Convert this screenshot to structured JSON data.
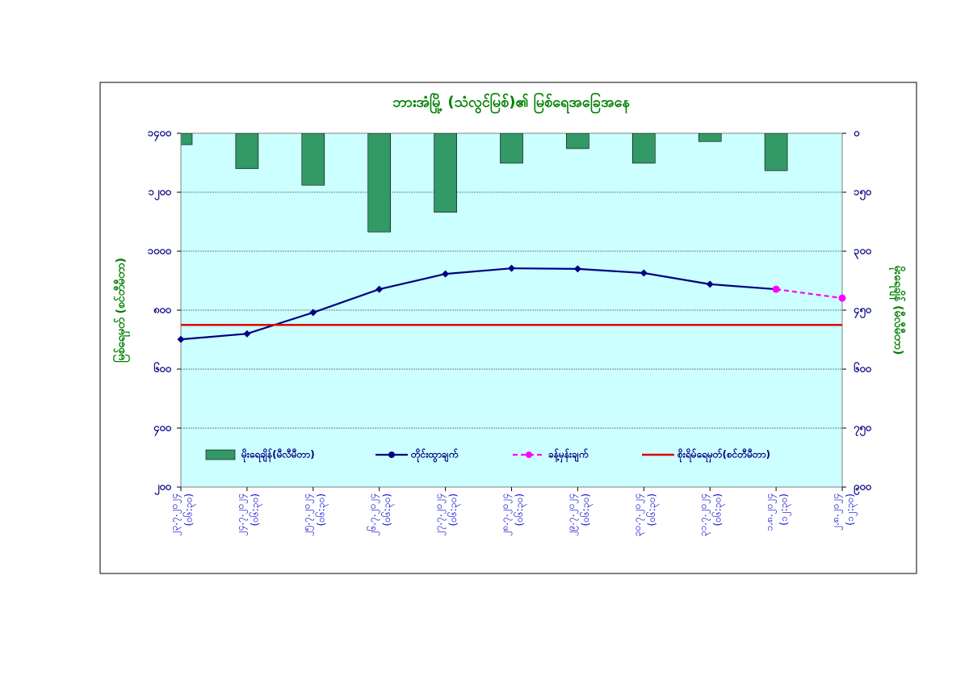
{
  "chart_data": {
    "type": "combo",
    "title": "ဘားအံမြို့ (သံလွင်မြစ်)၏ မြစ်ရေအခြေအနေ",
    "ylabel": "မြစ်ရေမှတ် (စင်တီမီတာ)",
    "y2label": "မိုးရေချိန် (မီလီမီတာ)",
    "categories": [
      "၂၃.၇.၂၀၂၄",
      "၂၄.၇.၂၀၂၄",
      "၂၅.၇.၂၀၂၄",
      "၂၆.၇.၂၀၂၄",
      "၂၇.၇.၂၀၂၄",
      "၂၈.၇.၂၀၂၄",
      "၂၉.၇.၂၀၂၄",
      "၃၀.၇.၂၀၂၄",
      "၃၁.၇.၂၀၂၄",
      "၁.၈.၂၀၂၄",
      "၂.၈.၂၀၂၄"
    ],
    "times": [
      "(၀၆:၃၀)",
      "(၀၆:၃၀)",
      "(၀၆:၃၀)",
      "(၀၆:၃၀)",
      "(၀၆:၃၀)",
      "(၀၆:၃၀)",
      "(၀၆:၃၀)",
      "(၀၆:၃၀)",
      "(၀၆:၃၀)",
      "(၁၂:၃၀)",
      "(၁၂:၃၀)"
    ],
    "ylim": [
      200,
      1400
    ],
    "yticks": [
      {
        "value": 200,
        "label": "၂၀၀"
      },
      {
        "value": 400,
        "label": "၄၀၀"
      },
      {
        "value": 600,
        "label": "၆၀၀"
      },
      {
        "value": 800,
        "label": "၈၀၀"
      },
      {
        "value": 1000,
        "label": "၁၀၀၀"
      },
      {
        "value": 1200,
        "label": "၁၂၀၀"
      },
      {
        "value": 1400,
        "label": "၁၄၀၀"
      }
    ],
    "y2lim": [
      0,
      900
    ],
    "y2_inverted": true,
    "y2ticks": [
      {
        "value": 0,
        "label": "၀"
      },
      {
        "value": 150,
        "label": "၁၅၀"
      },
      {
        "value": 300,
        "label": "၃၀၀"
      },
      {
        "value": 450,
        "label": "၄၅၀"
      },
      {
        "value": 600,
        "label": "၆၀၀"
      },
      {
        "value": 750,
        "label": "၇၅၀"
      },
      {
        "value": 900,
        "label": "၉၀၀"
      }
    ],
    "grid": true,
    "series": [
      {
        "name": "မိုးရေချိန်(မီလီမီတာ)",
        "kind": "bar",
        "axis": "y2",
        "color": "#339966",
        "values": [
          29,
          90,
          132,
          251,
          201,
          76,
          39,
          76,
          21,
          95,
          null
        ]
      },
      {
        "name": "တိုင်းထွာချက်",
        "kind": "line",
        "color": "#000080",
        "values": [
          701,
          720,
          792,
          871,
          923,
          942,
          940,
          926,
          888,
          871,
          null
        ]
      },
      {
        "name": "ခန့်မှန်းချက်",
        "kind": "dashed",
        "color": "#ff00ff",
        "values": [
          null,
          null,
          null,
          null,
          null,
          null,
          null,
          null,
          null,
          871,
          841
        ]
      }
    ],
    "danger": {
      "name": "စိုးရိမ်ရေမှတ်(စင်တီမီတာ)",
      "color": "#e00000",
      "value": 750
    }
  }
}
